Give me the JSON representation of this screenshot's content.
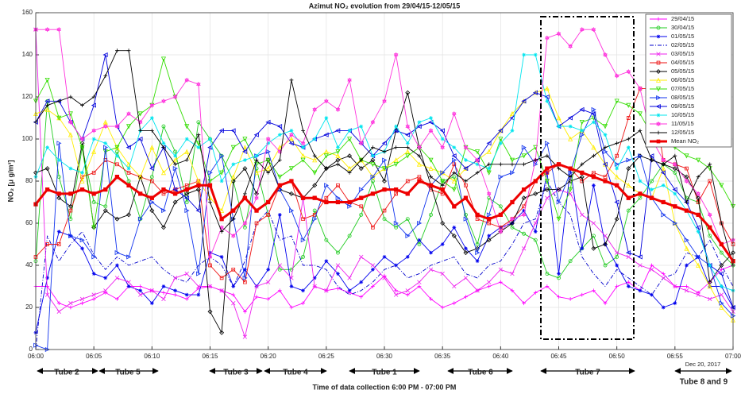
{
  "chart_data": {
    "type": "line",
    "title": "Azimut NO₂ evolution from 29/04/15-12/05/15",
    "x_label": "Time of data collection 6:00 PM - 07:00 PM",
    "y_label": "NO₂ [μ g/m³]",
    "tube_labels": [
      "Tube 2",
      "Tube 5",
      "Tube 3",
      "Tube 4",
      "Tube 1",
      "Tube 6",
      "Tube 7",
      "Tube 8 and 9"
    ],
    "date_stamp": "Dec 20, 2017",
    "xlim": [
      0,
      60
    ],
    "ylim": [
      0,
      160
    ],
    "grid": true,
    "xticks": [
      {
        "value": 0,
        "label": "06:00"
      },
      {
        "value": 5,
        "label": "06:05"
      },
      {
        "value": 10,
        "label": "06:10"
      },
      {
        "value": 15,
        "label": "06:15"
      },
      {
        "value": 20,
        "label": "06:20"
      },
      {
        "value": 25,
        "label": "06:25"
      },
      {
        "value": 30,
        "label": "06:30"
      },
      {
        "value": 35,
        "label": "06:35"
      },
      {
        "value": 40,
        "label": "06:40"
      },
      {
        "value": 45,
        "label": "06:45"
      },
      {
        "value": 50,
        "label": "06:50"
      },
      {
        "value": 55,
        "label": "06:55"
      },
      {
        "value": 60,
        "label": "07:00"
      }
    ],
    "yticks": [
      0,
      20,
      40,
      60,
      80,
      100,
      120,
      140,
      160
    ],
    "x": [
      0,
      1,
      2,
      3,
      4,
      5,
      6,
      7,
      8,
      9,
      10,
      11,
      12,
      13,
      14,
      15,
      16,
      17,
      18,
      19,
      20,
      21,
      22,
      23,
      24,
      25,
      26,
      27,
      28,
      29,
      30,
      31,
      32,
      33,
      34,
      35,
      36,
      37,
      38,
      39,
      40,
      41,
      42,
      43,
      44,
      45,
      46,
      47,
      48,
      49,
      50,
      51,
      52,
      53,
      54,
      55,
      56,
      57,
      58,
      59,
      60
    ],
    "series": [
      {
        "name": "29/04/15",
        "color": "#ff00ff",
        "marker": "plus",
        "values": [
          30,
          30,
          22,
          20,
          22,
          24,
          27,
          24,
          30,
          30,
          28,
          27,
          26,
          24,
          29,
          30,
          28,
          26,
          18,
          25,
          24,
          28,
          20,
          22,
          30,
          28,
          29,
          27,
          25,
          30,
          35,
          28,
          26,
          30,
          24,
          20,
          22,
          25,
          28,
          30,
          32,
          28,
          22,
          27,
          30,
          25,
          24,
          26,
          28,
          22,
          30,
          32,
          28,
          40,
          36,
          30,
          30,
          27,
          32,
          38,
          40
        ]
      },
      {
        "name": "30/04/15",
        "color": "#22cc22",
        "marker": "circle",
        "values": [
          42,
          118,
          82,
          62,
          96,
          70,
          68,
          94,
          80,
          62,
          82,
          106,
          94,
          70,
          108,
          100,
          92,
          80,
          58,
          86,
          64,
          38,
          38,
          44,
          66,
          52,
          46,
          54,
          64,
          80,
          62,
          58,
          62,
          50,
          64,
          80,
          82,
          64,
          50,
          72,
          68,
          58,
          55,
          52,
          36,
          34,
          42,
          48,
          54,
          40,
          44,
          66,
          72,
          80,
          88,
          84,
          72,
          70,
          54,
          46,
          40
        ]
      },
      {
        "name": "01/05/15",
        "color": "#0000ee",
        "marker": "star",
        "values": [
          8,
          34,
          56,
          54,
          48,
          36,
          34,
          40,
          30,
          28,
          22,
          30,
          28,
          26,
          26,
          46,
          44,
          30,
          38,
          30,
          38,
          64,
          30,
          28,
          34,
          42,
          36,
          28,
          32,
          38,
          44,
          40,
          44,
          52,
          46,
          50,
          58,
          48,
          42,
          54,
          58,
          60,
          66,
          56,
          84,
          36,
          86,
          48,
          78,
          50,
          40,
          30,
          28,
          26,
          20,
          22,
          40,
          44,
          30,
          30,
          20
        ]
      },
      {
        "name": "02/05/15",
        "color": "#0000cc",
        "marker": "none",
        "dash": "5 2 1 2",
        "values": [
          0,
          54,
          42,
          50,
          56,
          45,
          38,
          44,
          40,
          42,
          44,
          38,
          34,
          32,
          40,
          44,
          40,
          30,
          42,
          60,
          66,
          52,
          54,
          40,
          40,
          38,
          30,
          26,
          28,
          32,
          38,
          40,
          34,
          36,
          40,
          42,
          44,
          36,
          34,
          40,
          42,
          50,
          60,
          62,
          80,
          70,
          64,
          44,
          36,
          30,
          38,
          34,
          30,
          26,
          34,
          36,
          46,
          44,
          52,
          40,
          30
        ]
      },
      {
        "name": "03/05/15",
        "color": "#ee22ee",
        "marker": "x",
        "values": [
          152,
          26,
          18,
          22,
          24,
          26,
          28,
          34,
          32,
          26,
          28,
          24,
          34,
          36,
          30,
          30,
          28,
          22,
          6,
          30,
          32,
          40,
          34,
          72,
          30,
          28,
          40,
          34,
          44,
          40,
          34,
          26,
          28,
          32,
          38,
          36,
          30,
          34,
          28,
          32,
          38,
          36,
          48,
          60,
          72,
          76,
          74,
          64,
          60,
          54,
          46,
          44,
          40,
          38,
          34,
          30,
          28,
          26,
          24,
          26,
          18
        ]
      },
      {
        "name": "04/05/15",
        "color": "#ee1111",
        "marker": "square",
        "values": [
          44,
          50,
          50,
          66,
          82,
          84,
          90,
          88,
          84,
          82,
          80,
          74,
          76,
          78,
          80,
          40,
          34,
          38,
          32,
          60,
          64,
          78,
          80,
          62,
          64,
          72,
          78,
          70,
          68,
          58,
          66,
          74,
          80,
          82,
          76,
          74,
          88,
          78,
          62,
          60,
          58,
          62,
          68,
          80,
          84,
          88,
          86,
          80,
          84,
          82,
          92,
          110,
          124,
          124,
          90,
          88,
          86,
          70,
          80,
          60,
          50
        ]
      },
      {
        "name": "05/05/15",
        "color": "#000000",
        "marker": "diamond",
        "values": [
          84,
          86,
          72,
          68,
          98,
          58,
          66,
          62,
          64,
          82,
          66,
          58,
          70,
          74,
          76,
          18,
          8,
          80,
          86,
          74,
          90,
          76,
          74,
          72,
          78,
          86,
          90,
          92,
          86,
          90,
          80,
          104,
          122,
          96,
          78,
          60,
          54,
          46,
          48,
          52,
          56,
          60,
          72,
          74,
          76,
          76,
          80,
          82,
          48,
          50,
          62,
          86,
          92,
          90,
          88,
          86,
          82,
          72,
          32,
          40,
          46
        ]
      },
      {
        "name": "06/05/15",
        "color": "#ffee00",
        "marker": "triangle-up",
        "values": [
          112,
          114,
          110,
          102,
          80,
          94,
          108,
          96,
          88,
          82,
          96,
          84,
          90,
          94,
          80,
          72,
          66,
          82,
          96,
          84,
          86,
          96,
          100,
          92,
          90,
          94,
          92,
          86,
          90,
          82,
          86,
          90,
          94,
          88,
          86,
          84,
          80,
          86,
          90,
          94,
          104,
          112,
          118,
          122,
          124,
          110,
          100,
          104,
          96,
          88,
          82,
          78,
          74,
          72,
          86,
          60,
          48,
          40,
          30,
          20,
          14
        ]
      },
      {
        "name": "07/05/15",
        "color": "#33dd00",
        "marker": "triangle-down",
        "values": [
          118,
          128,
          110,
          112,
          96,
          58,
          94,
          96,
          106,
          112,
          116,
          138,
          120,
          106,
          98,
          80,
          84,
          96,
          100,
          88,
          90,
          82,
          86,
          90,
          84,
          92,
          94,
          100,
          90,
          88,
          86,
          88,
          92,
          96,
          90,
          80,
          76,
          96,
          94,
          84,
          100,
          90,
          92,
          96,
          80,
          62,
          76,
          108,
          110,
          106,
          118,
          116,
          112,
          102,
          98,
          96,
          92,
          90,
          86,
          78,
          68
        ]
      },
      {
        "name": "08/05/15",
        "color": "#1133ee",
        "marker": "triangle-right",
        "values": [
          2,
          0,
          98,
          54,
          52,
          44,
          96,
          46,
          44,
          62,
          70,
          66,
          86,
          66,
          36,
          84,
          92,
          62,
          34,
          92,
          94,
          76,
          66,
          52,
          62,
          78,
          72,
          68,
          76,
          82,
          90,
          60,
          54,
          60,
          78,
          84,
          90,
          62,
          46,
          64,
          82,
          84,
          96,
          88,
          98,
          70,
          84,
          102,
          114,
          94,
          88,
          90,
          92,
          72,
          64,
          60,
          52,
          44,
          40,
          22,
          16
        ]
      },
      {
        "name": "09/05/15",
        "color": "#0000dd",
        "marker": "triangle-left",
        "values": [
          108,
          118,
          118,
          108,
          100,
          116,
          140,
          106,
          96,
          100,
          86,
          96,
          76,
          72,
          66,
          96,
          104,
          104,
          94,
          102,
          108,
          106,
          98,
          96,
          100,
          102,
          104,
          104,
          98,
          92,
          98,
          104,
          102,
          106,
          108,
          104,
          92,
          86,
          90,
          98,
          104,
          110,
          118,
          122,
          120,
          106,
          110,
          114,
          112,
          88,
          70,
          46,
          44,
          92,
          84,
          76,
          70,
          58,
          40,
          36,
          20
        ]
      },
      {
        "name": "10/05/15",
        "color": "#00e5ee",
        "marker": "star",
        "values": [
          82,
          96,
          90,
          86,
          84,
          100,
          98,
          92,
          86,
          104,
          110,
          98,
          92,
          100,
          96,
          100,
          80,
          88,
          90,
          92,
          98,
          102,
          104,
          96,
          100,
          110,
          96,
          104,
          106,
          92,
          94,
          106,
          98,
          108,
          110,
          100,
          96,
          90,
          88,
          86,
          98,
          104,
          140,
          140,
          118,
          106,
          106,
          104,
          108,
          102,
          86,
          96,
          80,
          76,
          78,
          74,
          66,
          56,
          40,
          30,
          28
        ]
      },
      {
        "name": "11/05/15",
        "color": "#ff33dd",
        "marker": "hexagram",
        "values": [
          152,
          152,
          152,
          108,
          100,
          104,
          106,
          106,
          112,
          108,
          116,
          118,
          120,
          128,
          126,
          44,
          58,
          54,
          60,
          72,
          100,
          94,
          102,
          98,
          114,
          118,
          114,
          128,
          98,
          108,
          118,
          140,
          106,
          96,
          104,
          96,
          112,
          96,
          90,
          74,
          56,
          62,
          64,
          90,
          148,
          150,
          144,
          152,
          152,
          140,
          130,
          132,
          124,
          100,
          90,
          88,
          80,
          74,
          64,
          50,
          52
        ]
      },
      {
        "name": "12/05/15",
        "color": "#000000",
        "marker": "plus",
        "values": [
          108,
          116,
          118,
          120,
          116,
          120,
          130,
          142,
          142,
          104,
          104,
          96,
          88,
          90,
          102,
          70,
          56,
          62,
          74,
          90,
          84,
          90,
          128,
          104,
          92,
          86,
          88,
          84,
          90,
          96,
          94,
          96,
          96,
          92,
          82,
          78,
          84,
          80,
          84,
          88,
          88,
          88,
          88,
          90,
          92,
          86,
          82,
          88,
          92,
          96,
          98,
          100,
          104,
          90,
          88,
          92,
          70,
          82,
          88,
          60,
          40
        ]
      },
      {
        "name": "Mean NO₂",
        "color": "#ee0000",
        "marker": "square-filled",
        "width": 3,
        "values": [
          69,
          76,
          74,
          74,
          76,
          74,
          76,
          82,
          78,
          74,
          72,
          76,
          74,
          76,
          78,
          78,
          62,
          66,
          72,
          66,
          70,
          78,
          80,
          72,
          72,
          70,
          70,
          70,
          72,
          74,
          76,
          76,
          74,
          80,
          78,
          76,
          68,
          72,
          64,
          62,
          64,
          70,
          76,
          80,
          86,
          88,
          86,
          84,
          82,
          80,
          78,
          72,
          74,
          72,
          70,
          68,
          66,
          64,
          58,
          50,
          42
        ]
      }
    ]
  }
}
